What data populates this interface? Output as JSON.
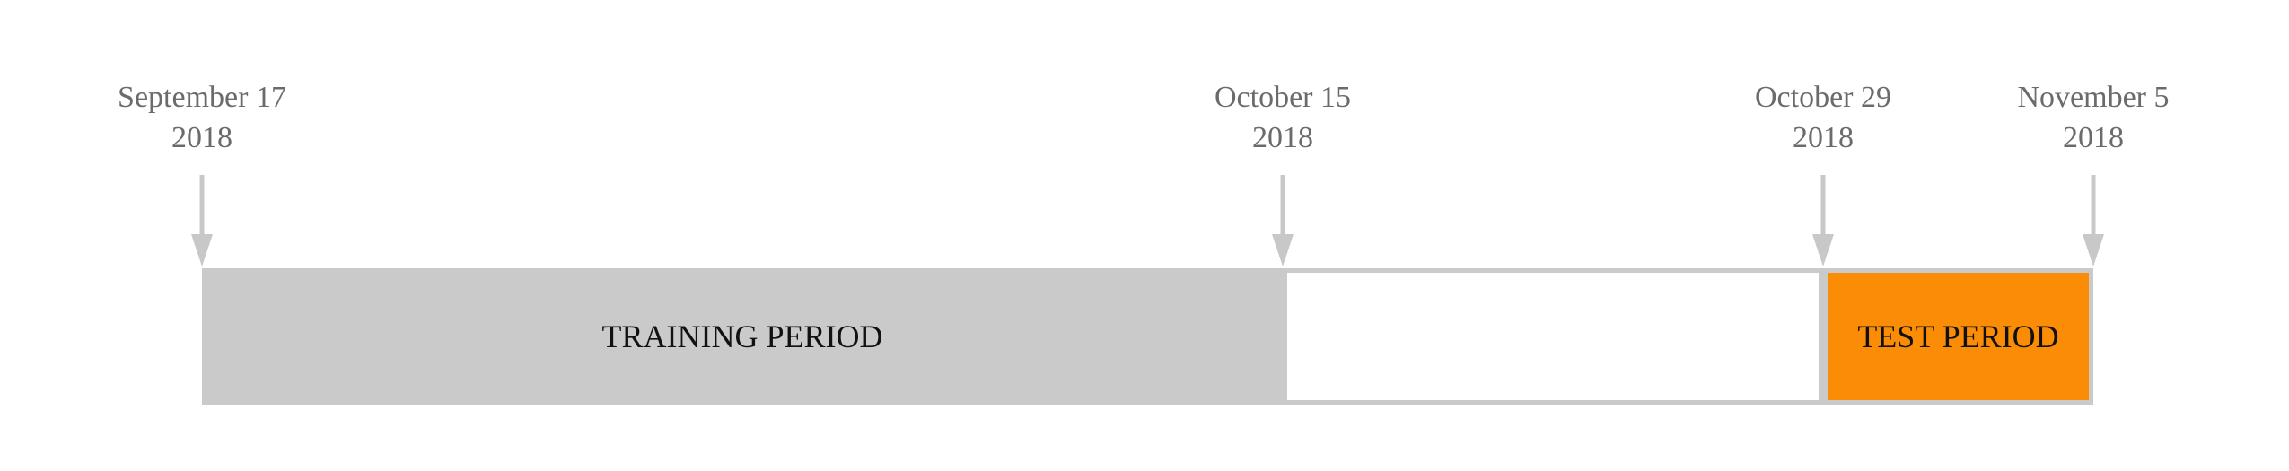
{
  "timeline": {
    "markers": [
      {
        "date": "September 17",
        "year": "2018",
        "day_offset": 0
      },
      {
        "date": "October 15",
        "year": "2018",
        "day_offset": 28
      },
      {
        "date": "October 29",
        "year": "2018",
        "day_offset": 42
      },
      {
        "date": "November 5",
        "year": "2018",
        "day_offset": 49
      }
    ],
    "segments": [
      {
        "label": "TRAINING PERIOD",
        "start_marker": 0,
        "end_marker": 1,
        "fill": "#cacaca",
        "outline": false
      },
      {
        "label": "",
        "start_marker": 1,
        "end_marker": 2,
        "fill": "#ffffff",
        "outline": true
      },
      {
        "label": "TEST PERIOD",
        "start_marker": 2,
        "end_marker": 3,
        "fill": "#fb8c06",
        "outline": true
      }
    ],
    "colors": {
      "arrow": "#c8c8c8",
      "border": "#cacaca",
      "date_text": "#6b6b6b",
      "label_text": "#111111"
    }
  }
}
